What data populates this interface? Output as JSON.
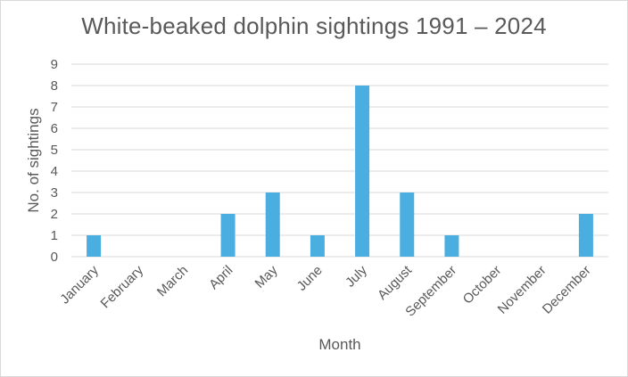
{
  "chart_data": {
    "type": "bar",
    "title": "White-beaked dolphin sightings 1991 – 2024",
    "xlabel": "Month",
    "ylabel": "No. of sightings",
    "categories": [
      "January",
      "February",
      "March",
      "April",
      "May",
      "June",
      "July",
      "August",
      "September",
      "October",
      "November",
      "December"
    ],
    "values": [
      1,
      0,
      0,
      2,
      3,
      1,
      8,
      3,
      1,
      0,
      0,
      2
    ],
    "ylim": [
      0,
      9
    ],
    "yticks": [
      "0",
      "1",
      "2",
      "3",
      "4",
      "5",
      "6",
      "7",
      "8",
      "9"
    ],
    "grid": true,
    "legend": "none",
    "bar_color": "#4aafe0",
    "grid_color": "#d9d9d9"
  }
}
